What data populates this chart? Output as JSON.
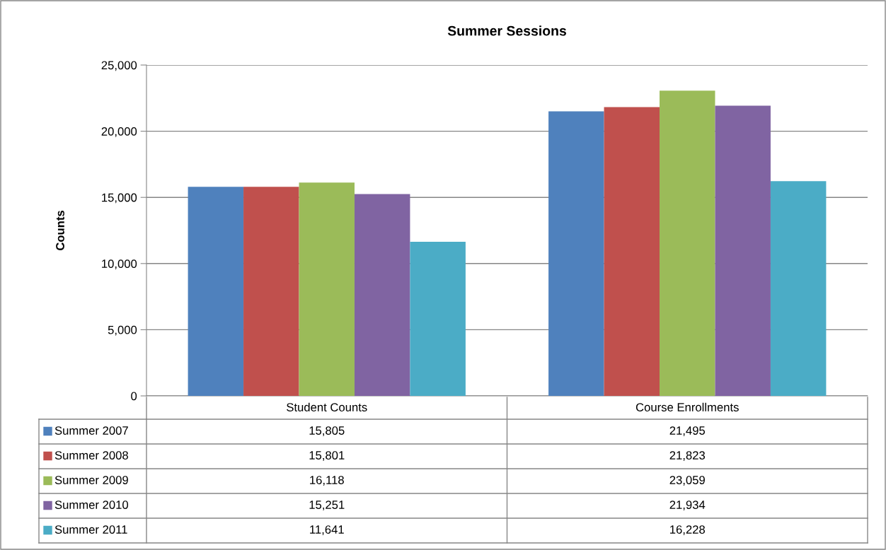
{
  "chart_data": {
    "type": "bar",
    "title": "Summer Sessions",
    "ylabel": "Counts",
    "categories": [
      "Student Counts",
      "Course Enrollments"
    ],
    "series": [
      {
        "name": "Summer 2007",
        "color": "#4f81bd",
        "values": [
          15805,
          21495
        ],
        "value_labels": [
          "15,805",
          "21,495"
        ]
      },
      {
        "name": "Summer 2008",
        "color": "#c0504d",
        "values": [
          15801,
          21823
        ],
        "value_labels": [
          "15,801",
          "21,823"
        ]
      },
      {
        "name": "Summer 2009",
        "color": "#9bbb59",
        "values": [
          16118,
          23059
        ],
        "value_labels": [
          "16,118",
          "23,059"
        ]
      },
      {
        "name": "Summer 2010",
        "color": "#8064a2",
        "values": [
          15251,
          21934
        ],
        "value_labels": [
          "15,251",
          "21,934"
        ]
      },
      {
        "name": "Summer 2011",
        "color": "#4bacc6",
        "values": [
          11641,
          16228
        ],
        "value_labels": [
          "11,641",
          "16,228"
        ]
      }
    ],
    "ylim": [
      0,
      25000
    ],
    "yticks": [
      0,
      {
        "value": 5000,
        "label": "5,000"
      },
      {
        "value": 10000,
        "label": "10,000"
      },
      {
        "value": 15000,
        "label": "15,000"
      },
      {
        "value": 20000,
        "label": "20,000"
      },
      {
        "value": 25000,
        "label": "25,000"
      }
    ],
    "grid": "y",
    "legend": "bottom"
  }
}
